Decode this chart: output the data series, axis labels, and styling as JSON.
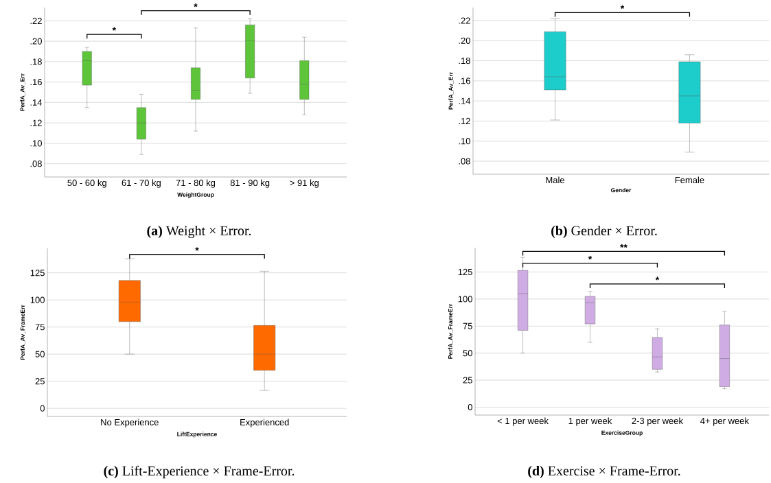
{
  "chart_data": [
    {
      "type": "box",
      "categories": [
        "50 - 60 kg",
        "61 - 70 kg",
        "71 - 80 kg",
        "81 - 90 kg",
        "> 91 kg"
      ],
      "color": "#5ec43a",
      "xlabel": "WeightGroup",
      "ylabel": "PerfA_Av_Err",
      "ylim": [
        0.067,
        0.233
      ],
      "yticks": [
        {
          "value": 0.08,
          "label": ".08"
        },
        {
          "value": 0.1,
          "label": ".10"
        },
        {
          "value": 0.12,
          "label": ".12"
        },
        {
          "value": 0.14,
          "label": ".14"
        },
        {
          "value": 0.16,
          "label": ".16"
        },
        {
          "value": 0.18,
          "label": ".18"
        },
        {
          "value": 0.2,
          "label": ".20"
        },
        {
          "value": 0.22,
          "label": ".22"
        }
      ],
      "grid": "y",
      "boxes": [
        {
          "low": 0.135,
          "q1": 0.157,
          "median": 0.181,
          "q3": 0.19,
          "high": 0.194
        },
        {
          "low": 0.089,
          "q1": 0.104,
          "median": 0.12,
          "q3": 0.135,
          "high": 0.148
        },
        {
          "low": 0.112,
          "q1": 0.143,
          "median": 0.152,
          "q3": 0.174,
          "high": 0.213
        },
        {
          "low": 0.149,
          "q1": 0.164,
          "median": 0.201,
          "q3": 0.216,
          "high": 0.222
        },
        {
          "low": 0.128,
          "q1": 0.143,
          "median": 0.158,
          "q3": 0.181,
          "high": 0.204
        }
      ],
      "annotations": [
        "**(a)** Weight × Error.",
        "*",
        "*"
      ]
    },
    {
      "type": "box",
      "categories": [
        "Male",
        "Female"
      ],
      "color": "#1ccdcb",
      "xlabel": "Gender",
      "ylabel": "PerfA_Av_Err",
      "ylim": [
        0.067,
        0.233
      ],
      "yticks": [
        {
          "value": 0.08,
          "label": ".08"
        },
        {
          "value": 0.1,
          "label": ".10"
        },
        {
          "value": 0.12,
          "label": ".12"
        },
        {
          "value": 0.14,
          "label": ".14"
        },
        {
          "value": 0.16,
          "label": ".16"
        },
        {
          "value": 0.18,
          "label": ".18"
        },
        {
          "value": 0.2,
          "label": ".20"
        },
        {
          "value": 0.22,
          "label": ".22"
        }
      ],
      "grid": "y",
      "boxes": [
        {
          "low": 0.121,
          "q1": 0.151,
          "median": 0.164,
          "q3": 0.209,
          "high": 0.222
        },
        {
          "low": 0.089,
          "q1": 0.118,
          "median": 0.145,
          "q3": 0.179,
          "high": 0.186
        }
      ],
      "annotations": [
        "**(b)** Gender × Error.",
        "*"
      ]
    },
    {
      "type": "box",
      "categories": [
        "No Experience",
        "Experienced"
      ],
      "color": "#ff6a00",
      "xlabel": "LiftExperience",
      "ylabel": "PerfA_Av_FrameErr",
      "ylim": [
        -7.5,
        147.6
      ],
      "yticks": [
        0,
        25,
        50,
        75,
        100,
        125
      ],
      "grid": "y",
      "boxes": [
        {
          "low": 50,
          "q1": 80,
          "median": 98,
          "q3": 118,
          "high": 138
        },
        {
          "low": 16.5,
          "q1": 35,
          "median": 50,
          "q3": 76.5,
          "high": 126.5
        }
      ],
      "annotations": [
        "**(c)** Lift-Experience × Frame-Error.",
        "*"
      ]
    },
    {
      "type": "box",
      "categories": [
        "< 1 per week",
        "1 per week",
        "2-3 per week",
        "4+ per week"
      ],
      "color": "#d0ace4",
      "xlabel": "ExerciseGroup",
      "ylabel": "PerfA_Av_FrameErr",
      "ylim": [
        -7.3,
        147.5
      ],
      "yticks": [
        0,
        25,
        50,
        75,
        100,
        125
      ],
      "grid": "y",
      "boxes": [
        {
          "low": 50,
          "q1": 71,
          "median": 105,
          "q3": 126.5,
          "high": 138.5
        },
        {
          "low": 60,
          "q1": 77,
          "median": 96.5,
          "q3": 102.5,
          "high": 107
        },
        {
          "low": 32.5,
          "q1": 35,
          "median": 46.5,
          "q3": 64.5,
          "high": 72.5
        },
        {
          "low": 17,
          "q1": 19,
          "median": 45,
          "q3": 76,
          "high": 88.5
        }
      ],
      "annotations": [
        "**(d)** Exercise × Frame-Error.",
        "**",
        "*",
        "*"
      ]
    }
  ]
}
